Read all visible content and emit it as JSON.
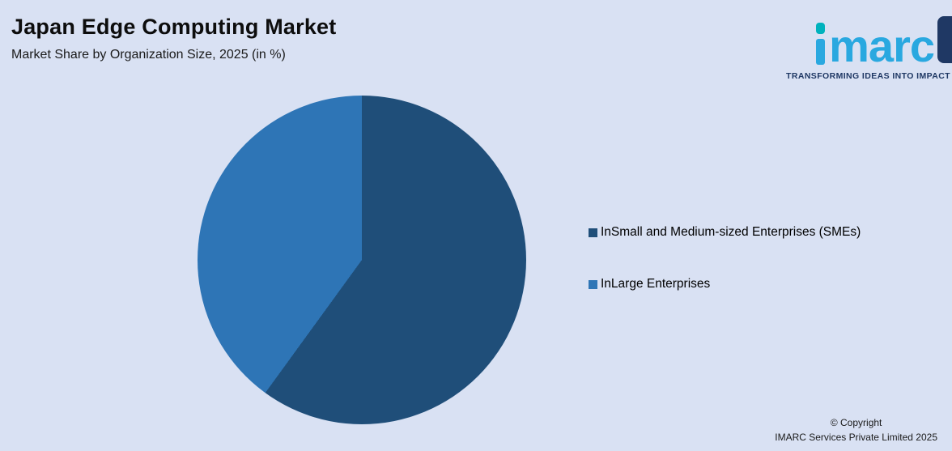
{
  "header": {
    "title": "Japan Edge Computing Market",
    "subtitle": "Market Share by Organization Size, 2025 (in %)"
  },
  "logo": {
    "word_rest": "marc",
    "tagline": "TRANSFORMING IDEAS INTO IMPACT",
    "brand_blue": "#29a8e0",
    "brand_teal": "#00b2bd",
    "brand_navy": "#1f3864"
  },
  "legend": [
    {
      "label": "InSmall and Medium-sized Enterprises (SMEs)",
      "color": "#1f4e79"
    },
    {
      "label": "InLarge Enterprises",
      "color": "#2e75b6"
    }
  ],
  "footer": {
    "line1": "© Copyright",
    "line2": "IMARC Services Private Limited 2025"
  },
  "chart_data": {
    "type": "pie",
    "title": "Japan Edge Computing Market",
    "subtitle": "Market Share by Organization Size, 2025 (in %)",
    "labels": [
      "Small and Medium-sized Enterprises (SMEs)",
      "Large Enterprises"
    ],
    "values": [
      60,
      40
    ],
    "unit": "%",
    "colors": [
      "#1f4e79",
      "#2e75b6"
    ],
    "start_angle_deg": 0,
    "direction": "clockwise",
    "legend_position": "right",
    "background_color": "#d9e1f3"
  }
}
